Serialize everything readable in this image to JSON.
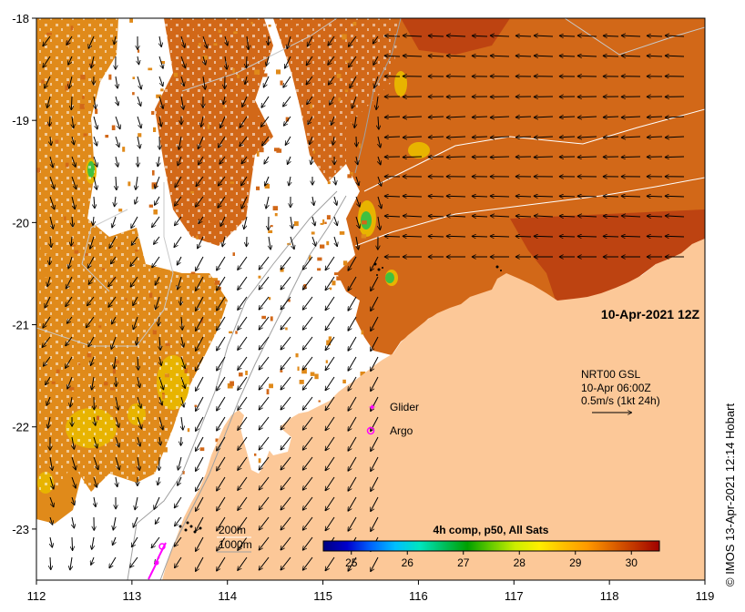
{
  "map": {
    "date_label": "10-Apr-2021 12Z",
    "credit": "© IMOS 13-Apr-2021 12:14 Hobart",
    "lon_ticks": [
      "112",
      "113",
      "114",
      "115",
      "116",
      "117",
      "118",
      "119"
    ],
    "lat_ticks": [
      "-18",
      "-19",
      "-20",
      "-21",
      "-22",
      "-23"
    ],
    "lon_range": [
      112,
      119
    ],
    "lat_range": [
      -23.5,
      -18
    ],
    "current_info": {
      "line1": "NRT00 GSL",
      "line2": "10-Apr 06:00Z",
      "line3": "0.5m/s (1kt 24h)"
    },
    "legend": {
      "glider": "Glider",
      "argo": "Argo",
      "glider_color": "#ff00ff",
      "argo_color": "#ff00ff"
    },
    "isobaths": [
      "200m",
      "1000m"
    ],
    "colorbar": {
      "title": "4h comp, p50, All Sats",
      "ticks": [
        "25",
        "26",
        "27",
        "28",
        "29",
        "30"
      ],
      "range": [
        24.5,
        30.5
      ],
      "colors": [
        "#000080",
        "#0000cd",
        "#0066ff",
        "#00bfff",
        "#00e5c0",
        "#00c060",
        "#00a000",
        "#66cc00",
        "#ccee00",
        "#ffee00",
        "#ffc000",
        "#ff9900",
        "#e06600",
        "#c03300",
        "#a00000"
      ]
    },
    "palette": {
      "land": "#fcc898",
      "sst_warm": "#d26818",
      "sst_hot": "#b83a10",
      "sst_mid": "#e08a1a",
      "sst_cool": "#e8b400",
      "sst_green": "#40c040",
      "cloud": "#ffffff"
    }
  }
}
